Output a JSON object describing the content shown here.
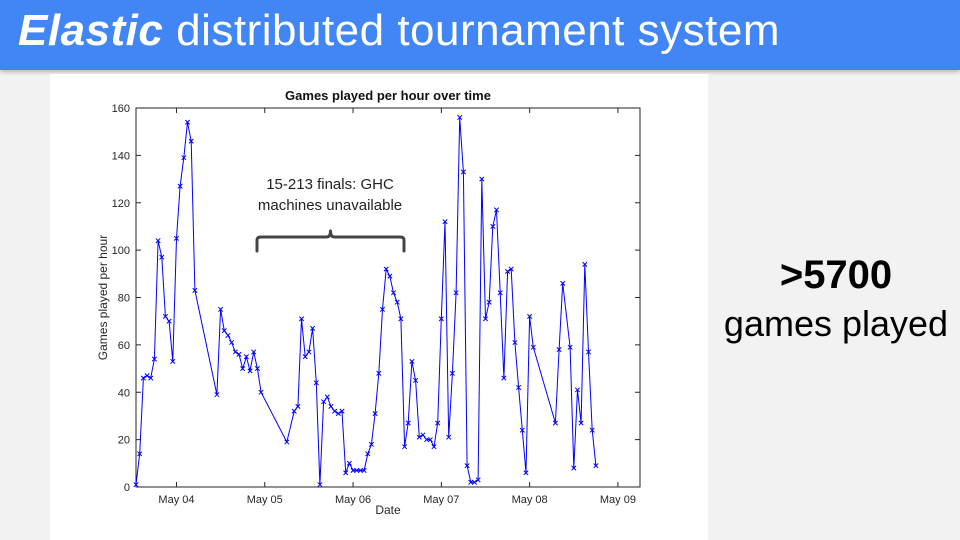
{
  "slide": {
    "title_em": "Elastic",
    "title_rest": " distributed tournament system",
    "stat_value": ">5700",
    "stat_label": "games played",
    "accent": "#4285f4"
  },
  "annotation": {
    "line1": "15-213 finals: GHC",
    "line2": "machines unavailable"
  },
  "chart_data": {
    "type": "line",
    "title": "Games played per hour over time",
    "xlabel": "Date",
    "ylabel": "Games played per hour",
    "ylim": [
      0,
      160
    ],
    "yticks": [
      0,
      20,
      40,
      60,
      80,
      100,
      120,
      140,
      160
    ],
    "xlim": [
      "May 03 13:00",
      "May 09 06:00"
    ],
    "xticks": [
      "May 04",
      "May 05",
      "May 06",
      "May 07",
      "May 08",
      "May 09"
    ],
    "grid": false,
    "marker": "x",
    "color": "#0000ff",
    "x_unit": "hours since May 03 13:00",
    "series": [
      {
        "x": [
          0,
          1,
          2,
          3,
          4,
          5,
          6,
          7,
          8,
          9,
          10,
          11,
          12,
          13,
          14,
          15,
          16,
          17,
          22,
          23,
          24,
          25,
          26,
          27,
          28,
          29,
          30,
          31,
          32,
          33,
          34,
          35,
          36,
          37,
          38,
          41,
          42,
          43,
          44,
          45,
          46,
          47,
          48,
          49,
          50,
          51,
          52,
          53,
          54,
          55,
          56,
          57,
          58,
          59,
          60,
          61,
          62,
          63,
          64,
          65,
          66,
          67,
          68,
          69,
          70,
          71,
          72,
          73,
          74,
          75,
          76,
          77,
          78,
          79,
          80,
          81,
          82,
          83,
          84,
          85,
          86,
          87,
          88,
          89,
          90,
          91,
          92,
          93,
          94,
          95,
          96,
          97,
          98,
          99,
          100,
          101,
          102,
          103,
          104,
          105,
          106,
          107,
          108,
          114,
          115,
          116,
          118,
          119,
          120,
          121,
          122,
          123,
          124,
          125,
          126
        ],
        "values": [
          1,
          14,
          46,
          47,
          46,
          54,
          104,
          97,
          72,
          70,
          53,
          105,
          127,
          139,
          154,
          146,
          83,
          null,
          39,
          75,
          66,
          64,
          61,
          57,
          56,
          50,
          55,
          49,
          57,
          50,
          40,
          null,
          null,
          null,
          null,
          19,
          null,
          32,
          34,
          71,
          55,
          57,
          67,
          44,
          1,
          36,
          38,
          34,
          32,
          31,
          32,
          6,
          10,
          7,
          7,
          7,
          7,
          14,
          18,
          31,
          48,
          75,
          92,
          89,
          82,
          78,
          71,
          17,
          27,
          53,
          45,
          21,
          22,
          20,
          20,
          17,
          27,
          71,
          112,
          21,
          48,
          82,
          156,
          133,
          9,
          2,
          2,
          3,
          130,
          71,
          78,
          110,
          117,
          82,
          46,
          91,
          92,
          61,
          42,
          24,
          6,
          72,
          59,
          27,
          58,
          86,
          59,
          8,
          41,
          27,
          94,
          57,
          24,
          9,
          null
        ]
      }
    ]
  }
}
